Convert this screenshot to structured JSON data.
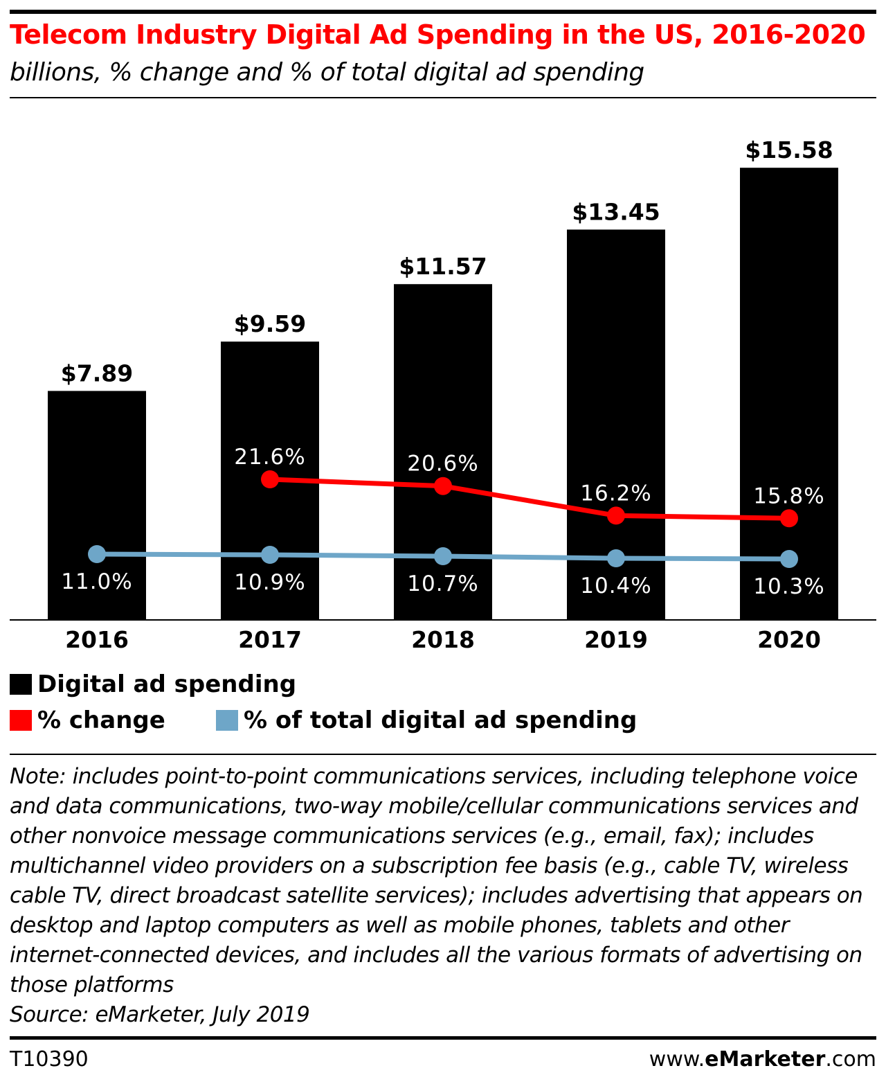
{
  "header": {
    "title": "Telecom Industry Digital Ad Spending in the US, 2016-2020",
    "subtitle": "billions, % change and % of total digital ad spending"
  },
  "colors": {
    "bar": "#000000",
    "change_line": "#ff0000",
    "share_line": "#6ea6c8",
    "title": "#ff0000"
  },
  "chart_data": {
    "type": "bar",
    "categories": [
      "2016",
      "2017",
      "2018",
      "2019",
      "2020"
    ],
    "series": [
      {
        "name": "Digital ad spending",
        "kind": "bar",
        "values": [
          7.89,
          9.59,
          11.57,
          13.45,
          15.58
        ],
        "labels": [
          "$7.89",
          "$9.59",
          "$11.57",
          "$13.45",
          "$15.58"
        ]
      },
      {
        "name": "% change",
        "kind": "line",
        "values": [
          null,
          21.6,
          20.6,
          16.2,
          15.8
        ],
        "labels": [
          "",
          "21.6%",
          "20.6%",
          "16.2%",
          "15.8%"
        ]
      },
      {
        "name": "% of total digital ad spending",
        "kind": "line",
        "values": [
          11.0,
          10.9,
          10.7,
          10.4,
          10.3
        ],
        "labels": [
          "11.0%",
          "10.9%",
          "10.7%",
          "10.4%",
          "10.3%"
        ]
      }
    ],
    "legend_position": "bottom-left",
    "grid": false
  },
  "legend": {
    "spending": "Digital ad spending",
    "change": "% change",
    "share": "% of total digital ad spending"
  },
  "note": {
    "text": "Note: includes point-to-point communications services, including telephone voice and data communications, two-way mobile/cellular communications services and other nonvoice message communications services (e.g., email, fax); includes multichannel video providers on a subscription fee basis (e.g., cable TV, wireless cable TV, direct broadcast satellite services); includes advertising that appears on desktop and laptop computers as well as mobile phones, tablets and other internet-connected devices, and includes all the various formats of advertising on those platforms",
    "source": "Source: eMarketer, July 2019"
  },
  "footer": {
    "chart_id": "T10390",
    "brand_prefix": "www.",
    "brand_name": "eMarketer",
    "brand_suffix": ".com"
  }
}
